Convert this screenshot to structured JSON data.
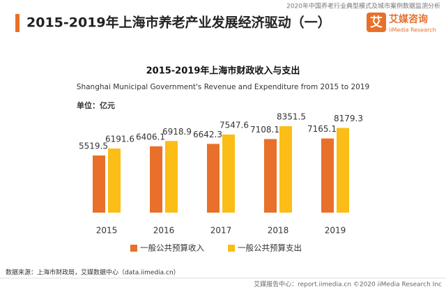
{
  "header": {
    "report": "2020年中国养老行业典型模式及城市案例数据监测分析",
    "title": "2015-2019年上海市养老产业发展经济驱动（一）",
    "logo_mark": "艾",
    "logo_name": "艾媒咨询",
    "logo_en": "iiMedia Research"
  },
  "chart_data": {
    "type": "bar",
    "title": "2015-2019年上海市财政收入与支出",
    "subtitle": "Shanghai Municipal Government's Revenue and Expenditure from 2015 to 2019",
    "unit": "单位：亿元",
    "categories": [
      "2015",
      "2016",
      "2017",
      "2018",
      "2019"
    ],
    "series": [
      {
        "name": "一般公共预算收入",
        "color": "#e8702a",
        "values": [
          5519.5,
          6406.1,
          6642.3,
          7108.1,
          7165.1
        ]
      },
      {
        "name": "一般公共预算支出",
        "color": "#fbbd16",
        "values": [
          6191.6,
          6918.9,
          7547.6,
          8351.5,
          8179.3
        ]
      }
    ]
  },
  "footer": {
    "source": "数据来源：上海市财政局，艾媒数据中心（data.iimedia.cn）",
    "credit": "艾媒报告中心：report.iimedia.cn  ©2020  iiMedia Research  Inc"
  }
}
